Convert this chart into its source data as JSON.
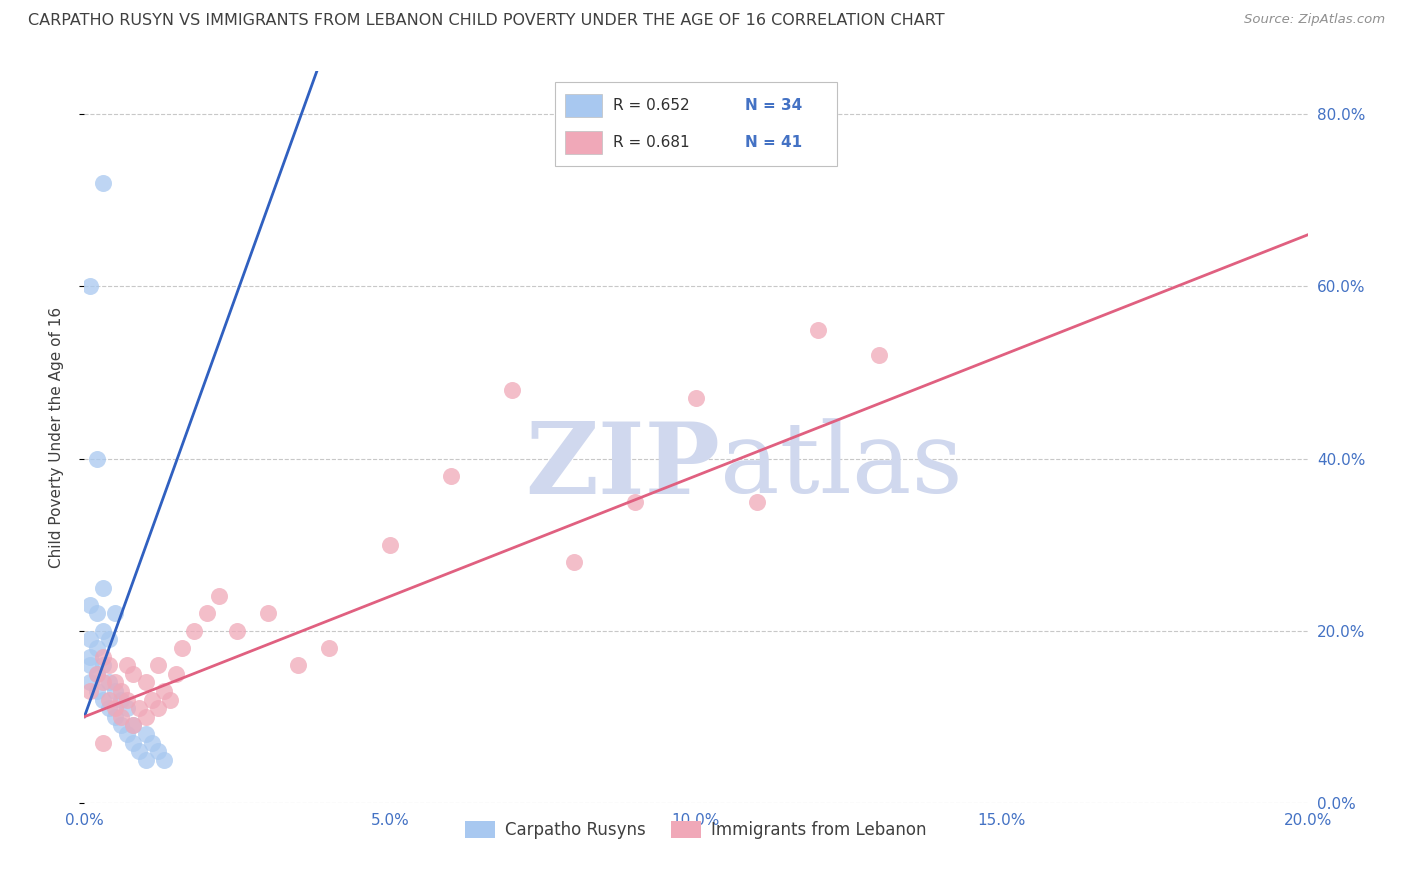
{
  "title": "CARPATHO RUSYN VS IMMIGRANTS FROM LEBANON CHILD POVERTY UNDER THE AGE OF 16 CORRELATION CHART",
  "source": "Source: ZipAtlas.com",
  "ylabel": "Child Poverty Under the Age of 16",
  "xlim": [
    0.0,
    0.2
  ],
  "ylim": [
    0.0,
    0.85
  ],
  "xticks": [
    0.0,
    0.05,
    0.1,
    0.15,
    0.2
  ],
  "yticks": [
    0.0,
    0.2,
    0.4,
    0.6,
    0.8
  ],
  "xtick_labels": [
    "0.0%",
    "5.0%",
    "10.0%",
    "15.0%",
    "20.0%"
  ],
  "ytick_labels": [
    "0.0%",
    "20.0%",
    "40.0%",
    "60.0%",
    "80.0%"
  ],
  "blue_color": "#A8C8F0",
  "pink_color": "#F0A8B8",
  "blue_line_color": "#3060C0",
  "pink_line_color": "#E06080",
  "title_color": "#404040",
  "source_color": "#909090",
  "axis_label_color": "#4472C4",
  "R_blue": 0.652,
  "N_blue": 34,
  "R_pink": 0.681,
  "N_pink": 41,
  "blue_scatter_x": [
    0.001,
    0.001,
    0.001,
    0.001,
    0.001,
    0.002,
    0.002,
    0.002,
    0.002,
    0.003,
    0.003,
    0.003,
    0.003,
    0.004,
    0.004,
    0.004,
    0.005,
    0.005,
    0.005,
    0.006,
    0.006,
    0.007,
    0.007,
    0.008,
    0.008,
    0.009,
    0.01,
    0.01,
    0.011,
    0.012,
    0.013,
    0.002,
    0.001,
    0.003
  ],
  "blue_scatter_y": [
    0.14,
    0.17,
    0.19,
    0.23,
    0.16,
    0.13,
    0.18,
    0.22,
    0.15,
    0.12,
    0.16,
    0.2,
    0.25,
    0.11,
    0.14,
    0.19,
    0.1,
    0.13,
    0.22,
    0.09,
    0.12,
    0.08,
    0.11,
    0.07,
    0.09,
    0.06,
    0.05,
    0.08,
    0.07,
    0.06,
    0.05,
    0.4,
    0.6,
    0.72
  ],
  "pink_scatter_x": [
    0.001,
    0.002,
    0.003,
    0.003,
    0.004,
    0.004,
    0.005,
    0.005,
    0.006,
    0.006,
    0.007,
    0.007,
    0.008,
    0.008,
    0.009,
    0.01,
    0.01,
    0.011,
    0.012,
    0.012,
    0.013,
    0.014,
    0.015,
    0.016,
    0.018,
    0.02,
    0.022,
    0.025,
    0.03,
    0.035,
    0.04,
    0.05,
    0.06,
    0.07,
    0.08,
    0.09,
    0.1,
    0.11,
    0.12,
    0.13,
    0.003
  ],
  "pink_scatter_y": [
    0.13,
    0.15,
    0.14,
    0.17,
    0.12,
    0.16,
    0.11,
    0.14,
    0.1,
    0.13,
    0.12,
    0.16,
    0.09,
    0.15,
    0.11,
    0.1,
    0.14,
    0.12,
    0.11,
    0.16,
    0.13,
    0.12,
    0.15,
    0.18,
    0.2,
    0.22,
    0.24,
    0.2,
    0.22,
    0.16,
    0.18,
    0.3,
    0.38,
    0.48,
    0.28,
    0.35,
    0.47,
    0.35,
    0.55,
    0.52,
    0.07
  ],
  "blue_line_slope": 35.0,
  "blue_line_intercept": 0.1,
  "blue_line_x_solid_start": 0.0,
  "blue_line_x_solid_end": 0.038,
  "blue_line_x_dash_start": 0.038,
  "blue_line_x_dash_end": 0.058,
  "pink_line_slope": 2.8,
  "pink_line_intercept": 0.1,
  "pink_line_x_start": 0.0,
  "pink_line_x_end": 0.2,
  "watermark_zip": "ZIP",
  "watermark_atlas": "atlas",
  "watermark_color": "#D0D8EE",
  "background_color": "#FFFFFF",
  "grid_color": "#C8C8C8"
}
